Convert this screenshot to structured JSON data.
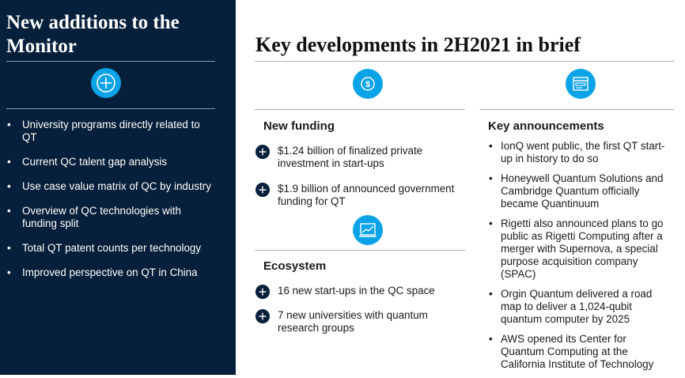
{
  "left_panel": {
    "title": "New additions to the Monitor",
    "icon": "plus-circle-icon",
    "items": [
      "University programs directly related to QT",
      "Current QC talent gap analysis",
      "Use case value matrix of QC by industry",
      "Overview of QC technologies with funding split",
      "Total QT patent counts per technology",
      "Improved perspective on QT in China"
    ]
  },
  "main": {
    "title": "Key developments in 2H2021 in brief",
    "new_funding": {
      "icon": "dollar-icon",
      "title": "New funding",
      "items": [
        "$1.24 billion of finalized private investment in start-ups",
        "$1.9 billion of announced government funding for QT"
      ]
    },
    "ecosystem": {
      "icon": "chart-icon",
      "title": "Ecosystem",
      "items": [
        "16 new start-ups in the QC space",
        "7 new universities with quantum research groups"
      ]
    },
    "key_announcements": {
      "icon": "announcement-icon",
      "title": "Key announcements",
      "items": [
        "IonQ went public, the first QT start-up in history to do so",
        "Honeywell Quantum Solutions and Cambridge Quantum officially became Quantinuum",
        "Rigetti also announced plans to go public as Rigetti Computing after a merger with Supernova, a special purpose acquisition company (SPAC)",
        "Orgin Quantum delivered a road map to deliver a 1,024-qubit quantum computer by 2025",
        "AWS opened its Center for Quantum Computing at the California Institute of Technology"
      ]
    }
  },
  "colors": {
    "navy": "#061f3a",
    "accent_blue": "#0aa3e8"
  }
}
